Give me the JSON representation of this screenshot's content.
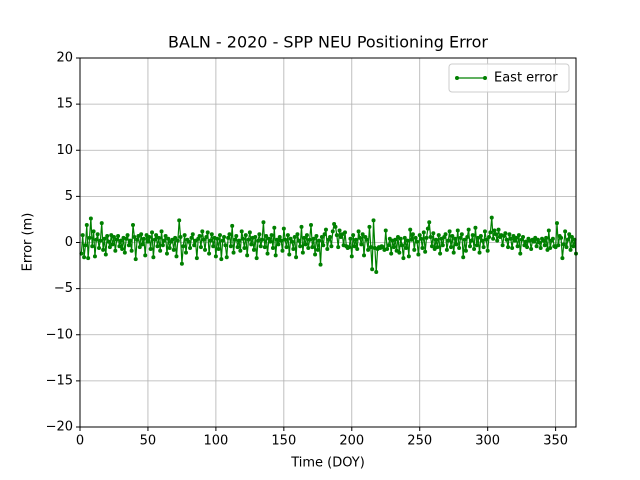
{
  "chart_data": {
    "type": "line",
    "title": "BALN - 2020 - SPP NEU Positioning Error",
    "xlabel": "Time (DOY)",
    "ylabel": "Error (m)",
    "xlim": [
      0,
      365
    ],
    "ylim": [
      -20,
      20
    ],
    "xticks": [
      0,
      50,
      100,
      150,
      200,
      250,
      300,
      350
    ],
    "yticks": [
      {
        "value": -20,
        "label": "−20"
      },
      {
        "value": -15,
        "label": "−15"
      },
      {
        "value": -10,
        "label": "−10"
      },
      {
        "value": -5,
        "label": "−5"
      },
      0,
      5,
      10,
      15,
      20
    ],
    "grid": true,
    "legend": "upper right",
    "x": [
      1,
      2,
      3,
      4,
      5,
      6,
      7,
      8,
      9,
      10,
      11,
      12,
      13,
      14,
      15,
      16,
      17,
      18,
      19,
      20,
      21,
      22,
      23,
      24,
      25,
      26,
      27,
      28,
      29,
      30,
      31,
      32,
      33,
      34,
      35,
      36,
      37,
      38,
      39,
      40,
      41,
      42,
      43,
      44,
      45,
      46,
      47,
      48,
      49,
      50,
      51,
      52,
      53,
      54,
      55,
      56,
      57,
      58,
      59,
      60,
      61,
      62,
      63,
      64,
      65,
      66,
      67,
      68,
      69,
      70,
      71,
      72,
      73,
      74,
      75,
      76,
      77,
      78,
      79,
      80,
      81,
      82,
      83,
      84,
      85,
      86,
      87,
      88,
      89,
      90,
      91,
      92,
      93,
      94,
      95,
      96,
      97,
      98,
      99,
      100,
      101,
      102,
      103,
      104,
      105,
      106,
      107,
      108,
      109,
      110,
      111,
      112,
      113,
      114,
      115,
      116,
      117,
      118,
      119,
      120,
      121,
      122,
      123,
      124,
      125,
      126,
      127,
      128,
      129,
      130,
      131,
      132,
      133,
      134,
      135,
      136,
      137,
      138,
      139,
      140,
      141,
      142,
      143,
      144,
      145,
      146,
      147,
      148,
      149,
      150,
      151,
      152,
      153,
      154,
      155,
      156,
      157,
      158,
      159,
      160,
      161,
      162,
      163,
      164,
      165,
      166,
      167,
      168,
      169,
      170,
      171,
      172,
      173,
      174,
      175,
      176,
      177,
      178,
      179,
      180,
      181,
      182,
      183,
      184,
      185,
      186,
      187,
      188,
      189,
      190,
      191,
      192,
      193,
      194,
      195,
      196,
      197,
      198,
      199,
      200,
      201,
      202,
      203,
      204,
      205,
      206,
      207,
      208,
      209,
      210,
      211,
      212,
      213,
      214,
      215,
      216,
      217,
      218,
      219,
      220,
      221,
      222,
      223,
      224,
      225,
      226,
      227,
      228,
      229,
      230,
      231,
      232,
      233,
      234,
      235,
      236,
      237,
      238,
      239,
      240,
      241,
      242,
      243,
      244,
      245,
      246,
      247,
      248,
      249,
      250,
      251,
      252,
      253,
      254,
      255,
      256,
      257,
      258,
      259,
      260,
      261,
      262,
      263,
      264,
      265,
      266,
      267,
      268,
      269,
      270,
      271,
      272,
      273,
      274,
      275,
      276,
      277,
      278,
      279,
      280,
      281,
      282,
      283,
      284,
      285,
      286,
      287,
      288,
      289,
      290,
      291,
      292,
      293,
      294,
      295,
      296,
      297,
      298,
      299,
      300,
      301,
      302,
      303,
      304,
      305,
      306,
      307,
      308,
      309,
      310,
      311,
      312,
      313,
      314,
      315,
      316,
      317,
      318,
      319,
      320,
      321,
      322,
      323,
      324,
      325,
      326,
      327,
      328,
      329,
      330,
      331,
      332,
      333,
      334,
      335,
      336,
      337,
      338,
      339,
      340,
      341,
      342,
      343,
      344,
      345,
      346,
      347,
      348,
      349,
      350,
      351,
      352,
      353,
      354,
      355,
      356,
      357,
      358,
      359,
      360,
      361,
      362,
      363,
      364,
      365
    ],
    "series": [
      {
        "name": "East error",
        "color": "#008000",
        "values": [
          -1.2,
          0.8,
          -1.6,
          -0.3,
          1.9,
          -1.7,
          0.5,
          2.6,
          -0.4,
          1.2,
          -1.5,
          0.3,
          0.9,
          -0.6,
          0.2,
          2.1,
          -0.8,
          0.4,
          -1.3,
          0.7,
          0.1,
          -0.5,
          0.8,
          -0.2,
          0.6,
          -0.9,
          0.3,
          0.7,
          -0.4,
          0.2,
          -0.7,
          0.5,
          -1.1,
          0.4,
          0.8,
          -0.3,
          0.2,
          -0.9,
          1.9,
          0.6,
          -1.8,
          0.3,
          0.7,
          -0.5,
          0.9,
          -0.2,
          0.4,
          -1.4,
          0.8,
          0.1,
          0.6,
          -0.7,
          1.1,
          -1.6,
          0.3,
          0.8,
          -0.4,
          0.5,
          -0.9,
          1.2,
          -0.3,
          0.2,
          0.7,
          -1.2,
          0.4,
          -0.6,
          0.1,
          0.3,
          -0.8,
          0.5,
          -1.5,
          0.2,
          2.4,
          0.6,
          -2.3,
          -0.4,
          0.8,
          -1.1,
          0.3,
          0.1,
          -0.6,
          0.5,
          0.9,
          -0.3,
          0.2,
          -1.7,
          0.4,
          0.7,
          -0.5,
          1.2,
          0.3,
          -0.8,
          0.6,
          1.1,
          -1.2,
          0.2,
          0.9,
          -0.4,
          0.5,
          -1.5,
          0.4,
          -0.7,
          0.8,
          -1.8,
          0.2,
          0.6,
          -0.3,
          -1.6,
          0.5,
          0.9,
          -0.4,
          1.8,
          -1.1,
          0.3,
          0.7,
          -0.5,
          0.2,
          -0.9,
          1.2,
          0.4,
          -0.6,
          0.8,
          -1.4,
          0.3,
          1.1,
          -0.2,
          0.5,
          -0.8,
          0.6,
          -1.7,
          0.2,
          0.9,
          -0.4,
          0.3,
          2.2,
          -0.5,
          0.7,
          -1.2,
          0.4,
          0.1,
          0.8,
          -0.6,
          1.6,
          -1.4,
          0.3,
          -0.2,
          0.6,
          0.2,
          -0.9,
          1.5,
          0.3,
          -0.5,
          0.8,
          -1.3,
          0.4,
          0.1,
          -0.7,
          0.6,
          -1.6,
          0.9,
          0.2,
          -0.4,
          1.7,
          -1.1,
          0.5,
          -0.2,
          0.8,
          -0.6,
          0.3,
          1.9,
          -0.5,
          0.4,
          -1.3,
          0.7,
          -0.8,
          0.2,
          -2.4,
          0.6,
          -0.3,
          0.9,
          1.4,
          -0.7,
          0.3,
          0.6,
          -0.4,
          1.2,
          2.0,
          1.7,
          0.8,
          -0.5,
          1.3,
          0.6,
          0.9,
          -0.3,
          1.1,
          -0.4,
          -0.6,
          -0.5,
          0.4,
          -1.5,
          0.8,
          -0.4,
          0.3,
          -0.7,
          1.2,
          0.5,
          -0.2,
          0.9,
          -1.4,
          0.6,
          0.3,
          -0.8,
          1.7,
          -0.5,
          -2.9,
          2.4,
          -0.6,
          -3.2,
          -0.7,
          -0.5,
          -0.6,
          -0.4,
          -0.5,
          -0.8,
          1.3,
          -0.7,
          -0.3,
          0.4,
          -1.2,
          0.2,
          -0.5,
          0.3,
          -0.9,
          0.6,
          -1.1,
          0.4,
          -0.3,
          -1.7,
          0.5,
          -0.6,
          0.2,
          -1.5,
          1.4,
          0.3,
          0.9,
          -0.8,
          0.5,
          0.1,
          -1.3,
          0.8,
          0.4,
          -0.6,
          1.1,
          -1.0,
          0.5,
          1.5,
          2.2,
          0.6,
          -0.4,
          1.0,
          -0.7,
          0.3,
          -0.5,
          0.8,
          -1.2,
          0.4,
          -0.3,
          0.6,
          0.9,
          -0.8,
          0.2,
          1.2,
          -0.5,
          0.7,
          -1.1,
          0.4,
          -0.2,
          1.3,
          -0.6,
          0.5,
          0.9,
          -1.6,
          0.3,
          -0.9,
          0.6,
          1.4,
          -0.4,
          0.2,
          0.8,
          -0.7,
          1.6,
          -0.3,
          0.5,
          -1.1,
          0.7,
          0.2,
          -0.5,
          1.2,
          0.3,
          -0.9,
          0.6,
          1.1,
          2.7,
          0.4,
          1.3,
          0.9,
          0.2,
          1.4,
          0.6,
          0.8,
          -0.3,
          0.7,
          1.0,
          0.3,
          -0.5,
          0.9,
          0.4,
          -0.6,
          0.7,
          0.2,
          0.5,
          -0.4,
          0.8,
          -1.2,
          0.3,
          0.6,
          -0.3,
          0.1,
          -0.5,
          0.4,
          0.2,
          -0.7,
          0.3,
          0.1,
          0.5,
          -0.4,
          0.3,
          0.0,
          -0.6,
          0.4,
          0.2,
          -0.3,
          0.5,
          -0.8,
          1.3,
          -0.6,
          0.2,
          0.4,
          -0.4,
          -0.5,
          2.1,
          -0.3,
          0.7,
          0.5,
          -1.7,
          -0.2,
          1.2,
          -0.5,
          0.3,
          0.9,
          -0.8,
          0.6,
          -0.4,
          0.3,
          -1.2
        ]
      }
    ]
  }
}
